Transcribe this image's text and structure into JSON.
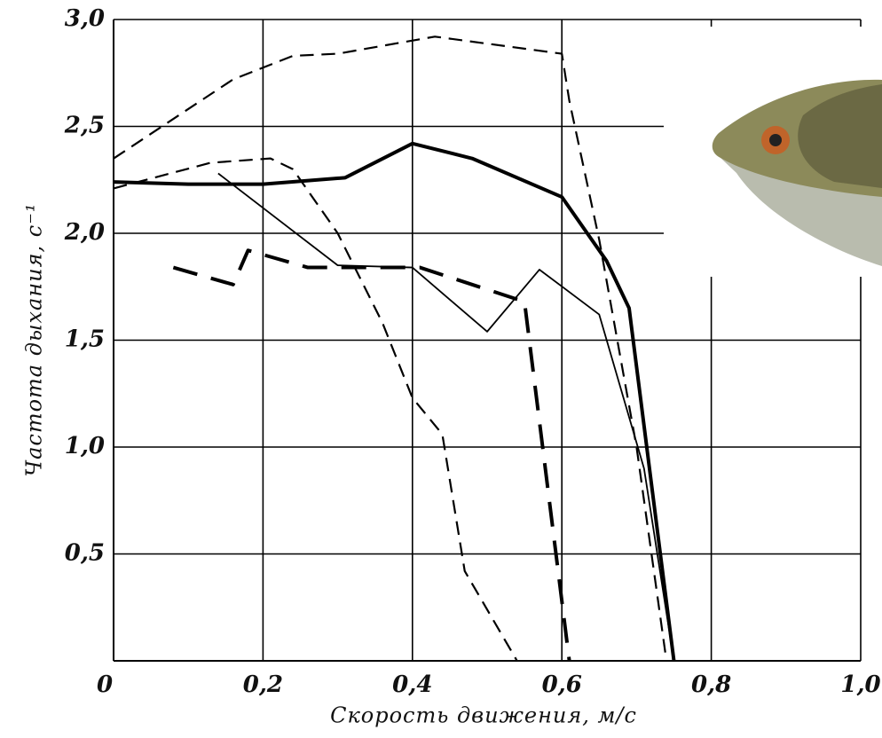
{
  "chart_data": {
    "type": "line",
    "x_label": "Скорость движения, м/с",
    "y_label": "Частота дыхания, с⁻¹",
    "xlim": [
      0,
      1.0
    ],
    "ylim": [
      0,
      3.0
    ],
    "xticks": [
      0,
      {
        "value": 0.2,
        "label": "0,2"
      },
      {
        "value": 0.4,
        "label": "0,4"
      },
      {
        "value": 0.6,
        "label": "0,6"
      },
      {
        "value": 0.8,
        "label": "0,8"
      },
      {
        "value": 1.0,
        "label": "1,0"
      }
    ],
    "yticks": [
      {
        "value": 0.5,
        "label": "0,5"
      },
      {
        "value": 1.0,
        "label": "1,0"
      },
      {
        "value": 1.5,
        "label": "1,5"
      },
      {
        "value": 2.0,
        "label": "2,0"
      },
      {
        "value": 2.5,
        "label": "2,5"
      },
      {
        "value": 3.0,
        "label": "3,0"
      }
    ],
    "grid": true,
    "series": [
      {
        "color": "#000000",
        "style": "dashed",
        "linewidth": 2.2,
        "x": [
          0,
          0.16,
          0.24,
          0.3,
          0.43,
          0.6,
          0.61,
          0.65,
          0.7,
          0.74
        ],
        "values": [
          2.35,
          2.72,
          2.83,
          2.84,
          2.92,
          2.84,
          2.62,
          1.97,
          1.0,
          0
        ]
      },
      {
        "color": "#000000",
        "style": "dashed",
        "linewidth": 2.2,
        "x": [
          0,
          0.13,
          0.21,
          0.24,
          0.3,
          0.36,
          0.4,
          0.44,
          0.47,
          0.54
        ],
        "values": [
          2.21,
          2.33,
          2.35,
          2.3,
          2.0,
          1.58,
          1.23,
          1.06,
          0.42,
          0
        ]
      },
      {
        "color": "#000000",
        "style": "solid",
        "linewidth": 4,
        "x": [
          0,
          0.1,
          0.2,
          0.31,
          0.4,
          0.48,
          0.6,
          0.66,
          0.69,
          0.75
        ],
        "values": [
          2.24,
          2.23,
          2.23,
          2.26,
          2.42,
          2.35,
          2.17,
          1.87,
          1.65,
          0
        ]
      },
      {
        "color": "#000000",
        "style": "solid",
        "linewidth": 1.8,
        "x": [
          0.14,
          0.3,
          0.4,
          0.5,
          0.57,
          0.65,
          0.71,
          0.75
        ],
        "values": [
          2.28,
          1.85,
          1.84,
          1.54,
          1.83,
          1.62,
          0.9,
          0
        ]
      },
      {
        "color": "#000000",
        "style": "dashed",
        "linewidth": 4,
        "x": [
          0.08,
          0.16,
          0.18,
          0.26,
          0.41,
          0.55,
          0.61
        ],
        "values": [
          1.84,
          1.76,
          1.92,
          1.84,
          1.84,
          1.68,
          0
        ]
      }
    ]
  }
}
